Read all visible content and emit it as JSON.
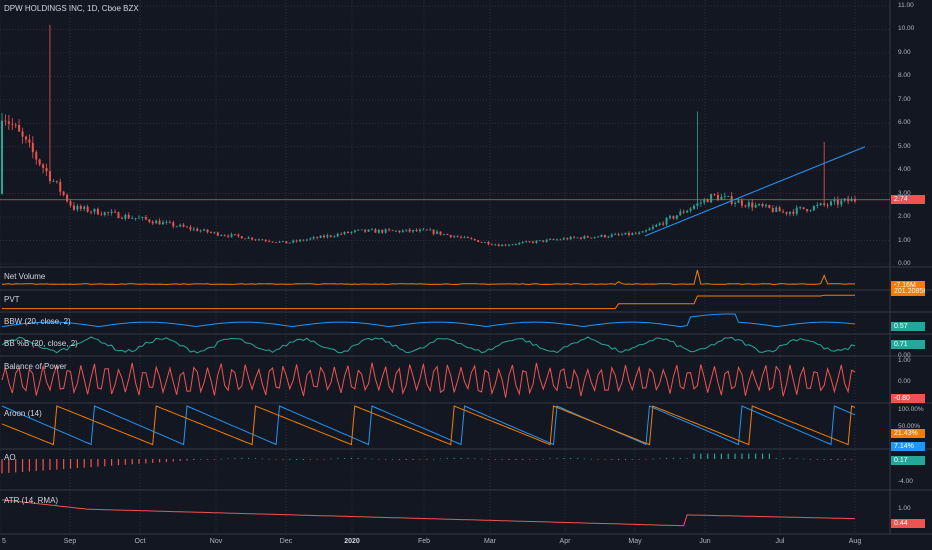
{
  "header": {
    "title": "DPW HOLDINGS INC, 1D, Cboe BZX"
  },
  "colors": {
    "background": "#131722",
    "grid": "#2a2e39",
    "up": "#26a69a",
    "down": "#ef5350",
    "orange": "#f57c00",
    "blue": "#2196f3",
    "teal": "#26a69a",
    "red": "#ef5350",
    "aroon_up": "#f57c00",
    "aroon_down": "#2196f3",
    "trendline": "#2196f3",
    "price_line": "#ef5350"
  },
  "price_axis": {
    "ticks": [
      "11.00",
      "10.00",
      "9.00",
      "8.00",
      "7.00",
      "6.00",
      "5.00",
      "4.00",
      "3.00",
      "2.00",
      "1.00",
      "0.00"
    ],
    "current": "2.74"
  },
  "panes": [
    {
      "label": "Net Volume",
      "values": [
        "-7.16M",
        "201.2085K"
      ],
      "colors": [
        "#f57c00",
        "#f57c00"
      ]
    },
    {
      "label": "PVT",
      "values": [],
      "colors": []
    },
    {
      "label": "BBW (20, close, 2)",
      "values": [
        "0.57"
      ],
      "colors": [
        "#26a69a"
      ]
    },
    {
      "label": "BB %B (20, close, 2)",
      "values": [
        "1.00",
        "0.71",
        "0.00"
      ],
      "colors": [
        "",
        "#26a69a",
        ""
      ]
    },
    {
      "label": "Balance of Power",
      "values": [
        "1.00",
        "0.00",
        "-0.80"
      ],
      "colors": [
        "",
        "",
        "#ef5350"
      ]
    },
    {
      "label": "Aroon (14)",
      "values": [
        "100.00%",
        "50.00%",
        "21.43%",
        "7.14%"
      ],
      "colors": [
        "",
        "",
        "#f57c00",
        "#2196f3"
      ]
    },
    {
      "label": "AO",
      "values": [
        "0.17",
        "-4.00"
      ],
      "colors": [
        "#26a69a",
        ""
      ]
    },
    {
      "label": "ATR (14, RMA)",
      "values": [
        "1.00",
        "0.44"
      ],
      "colors": [
        "",
        "#ef5350"
      ]
    }
  ],
  "time_axis": [
    "5",
    "Sep",
    "Oct",
    "Nov",
    "Dec",
    "2020",
    "Feb",
    "Mar",
    "Apr",
    "May",
    "Jun",
    "Jul",
    "Aug"
  ],
  "chart_data": {
    "type": "candlestick",
    "title": "DPW HOLDINGS INC, 1D, Cboe BZX",
    "ylim": [
      0,
      11
    ],
    "x": [
      "Aug",
      "Sep",
      "Oct",
      "Nov",
      "Dec",
      "2020",
      "Feb",
      "Mar",
      "Apr",
      "May",
      "Jun",
      "Jul",
      "Aug"
    ],
    "close": [
      6.5,
      2.4,
      1.9,
      1.3,
      0.9,
      1.4,
      1.4,
      0.8,
      1.1,
      1.3,
      2.9,
      2.2,
      2.74
    ],
    "spikes": [
      {
        "x": "Aug",
        "high": 10.2
      },
      {
        "x": "Jun",
        "high": 6.5
      },
      {
        "x": "Aug",
        "high": 5.2
      }
    ],
    "last_price": 2.74,
    "trendline": {
      "from": [
        "May",
        1.2
      ],
      "to": [
        "Aug",
        5.0
      ]
    }
  }
}
